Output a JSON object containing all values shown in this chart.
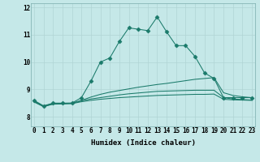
{
  "title": "",
  "xlabel": "Humidex (Indice chaleur)",
  "background_color": "#c5e8e8",
  "grid_color": "#b0d4d4",
  "line_color": "#1a7a6a",
  "x_ticks": [
    0,
    1,
    2,
    3,
    4,
    5,
    6,
    7,
    8,
    9,
    10,
    11,
    12,
    13,
    14,
    15,
    16,
    17,
    18,
    19,
    20,
    21,
    22,
    23
  ],
  "y_ticks": [
    8,
    9,
    10,
    11,
    12
  ],
  "ylim": [
    7.65,
    12.15
  ],
  "xlim": [
    -0.3,
    23.3
  ],
  "series": [
    [
      8.6,
      8.4,
      8.5,
      8.5,
      8.5,
      8.7,
      9.3,
      10.0,
      10.15,
      10.75,
      11.25,
      11.2,
      11.15,
      11.65,
      11.1,
      10.6,
      10.6,
      10.2,
      9.6,
      9.4,
      8.7,
      8.7,
      8.7,
      8.7
    ],
    [
      8.58,
      8.39,
      8.48,
      8.49,
      8.5,
      8.6,
      8.72,
      8.82,
      8.9,
      8.96,
      9.02,
      9.08,
      9.13,
      9.18,
      9.22,
      9.27,
      9.32,
      9.37,
      9.4,
      9.43,
      8.88,
      8.78,
      8.73,
      8.7
    ],
    [
      8.56,
      8.38,
      8.47,
      8.48,
      8.49,
      8.58,
      8.65,
      8.7,
      8.75,
      8.8,
      8.84,
      8.87,
      8.9,
      8.93,
      8.94,
      8.95,
      8.96,
      8.97,
      8.97,
      8.97,
      8.7,
      8.65,
      8.63,
      8.61
    ],
    [
      8.54,
      8.37,
      8.46,
      8.47,
      8.48,
      8.55,
      8.6,
      8.64,
      8.67,
      8.7,
      8.72,
      8.74,
      8.76,
      8.78,
      8.79,
      8.8,
      8.81,
      8.82,
      8.82,
      8.83,
      8.64,
      8.62,
      8.61,
      8.6
    ]
  ],
  "series_markers": [
    true,
    false,
    false,
    false
  ],
  "marker_style": "D",
  "marker_size": 2.5,
  "linewidth": 0.75,
  "tick_fontsize": 5.5,
  "xlabel_fontsize": 6.5
}
